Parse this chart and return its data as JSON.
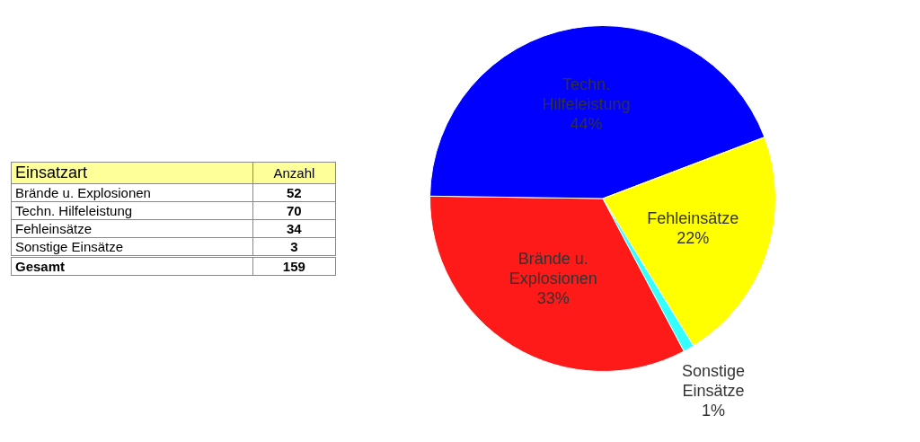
{
  "chart_data": {
    "type": "pie",
    "categories": [
      "Brände u. Explosionen",
      "Techn. Hilfeleistung",
      "Fehleinsätze",
      "Sonstige Einsätze"
    ],
    "values": [
      33,
      44,
      22,
      1
    ],
    "value_labels": [
      "33%",
      "44%",
      "22%",
      "1%"
    ],
    "colors": [
      "#ff1a1a",
      "#0000ff",
      "#ffff00",
      "#33ffff"
    ],
    "legend": false,
    "annotations": [
      "Einsatzart",
      "Anzahl",
      "Gesamt",
      "52",
      "70",
      "34",
      "3"
    ],
    "totals": [
      "159"
    ]
  }
}
